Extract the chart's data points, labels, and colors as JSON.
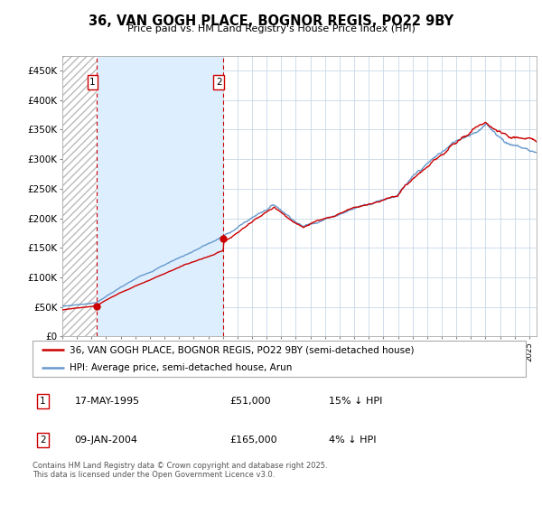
{
  "title": "36, VAN GOGH PLACE, BOGNOR REGIS, PO22 9BY",
  "subtitle": "Price paid vs. HM Land Registry's House Price Index (HPI)",
  "legend_line1": "36, VAN GOGH PLACE, BOGNOR REGIS, PO22 9BY (semi-detached house)",
  "legend_line2": "HPI: Average price, semi-detached house, Arun",
  "purchase1_date": "17-MAY-1995",
  "purchase1_price": 51000,
  "purchase1_label": "15% ↓ HPI",
  "purchase2_date": "09-JAN-2004",
  "purchase2_price": 165000,
  "purchase2_label": "4% ↓ HPI",
  "footnote": "Contains HM Land Registry data © Crown copyright and database right 2025.\nThis data is licensed under the Open Government Licence v3.0.",
  "ylim": [
    0,
    475000
  ],
  "yticks": [
    0,
    50000,
    100000,
    150000,
    200000,
    250000,
    300000,
    350000,
    400000,
    450000
  ],
  "ytick_labels": [
    "£0",
    "£50K",
    "£100K",
    "£150K",
    "£200K",
    "£250K",
    "£300K",
    "£350K",
    "£400K",
    "£450K"
  ],
  "hpi_color": "#6699cc",
  "price_color": "#cc0000",
  "dot_color": "#cc0000",
  "vline_color": "#cc0000",
  "shade_color": "#ddeeff",
  "grid_color": "#c8d8e8",
  "purchase1_x_year": 1995.37,
  "purchase2_x_year": 2004.03,
  "xmin": 1993.0,
  "xmax": 2025.5
}
